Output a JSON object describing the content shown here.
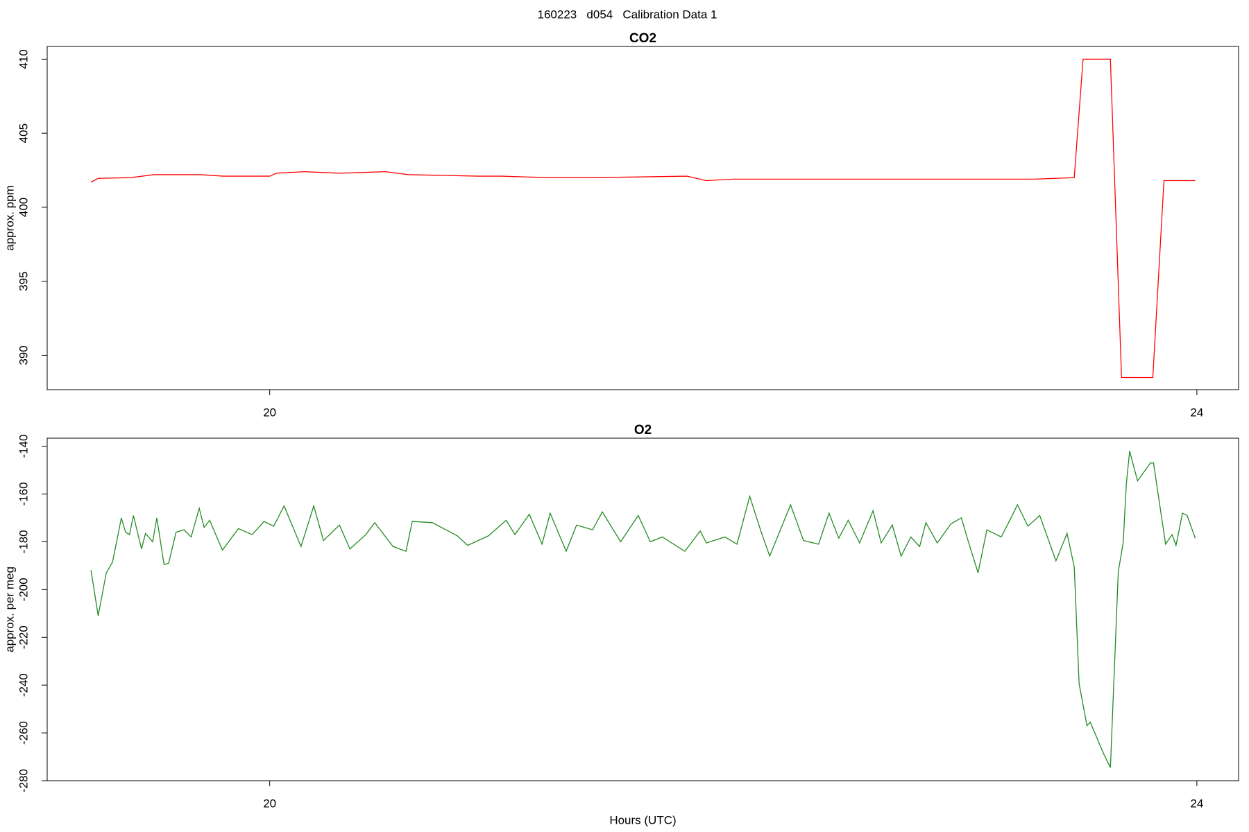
{
  "title": "160223   d054   Calibration Data 1",
  "chart_data": [
    {
      "type": "line",
      "title": "CO2",
      "ylabel": "approx. ppm",
      "color": "#ff0000",
      "xlim": [
        19.04,
        24.18
      ],
      "xticks": [
        20,
        24
      ],
      "ylim": [
        387.68,
        410.86
      ],
      "yticks": [
        390,
        395,
        400,
        405,
        410
      ],
      "x": [
        19.229,
        19.26,
        19.4,
        19.5,
        19.7,
        19.8,
        20.0,
        20.03,
        20.15,
        20.3,
        20.5,
        20.6,
        20.9,
        21.0,
        21.2,
        21.4,
        21.8,
        21.884,
        22.0,
        22.5,
        23.0,
        23.3,
        23.471,
        23.509,
        23.627,
        23.675,
        23.81,
        23.858,
        23.993
      ],
      "y": [
        401.7,
        401.95,
        402.0,
        402.2,
        402.2,
        402.1,
        402.1,
        402.3,
        402.4,
        402.3,
        402.4,
        402.2,
        402.1,
        402.1,
        402.0,
        402.0,
        402.1,
        401.8,
        401.9,
        401.9,
        401.9,
        401.9,
        402.0,
        410,
        410,
        388.5,
        388.5,
        401.8,
        401.8
      ]
    },
    {
      "type": "line",
      "title": "O2",
      "ylabel": "approx. per meg",
      "xlabel": "Hours (UTC)",
      "color": "#228b22",
      "xlim": [
        19.04,
        24.18
      ],
      "xticks": [
        20,
        24
      ],
      "ylim": [
        -280,
        -136.65
      ],
      "yticks": [
        -280,
        -260,
        -240,
        -220,
        -200,
        -180,
        -160,
        -140
      ],
      "x": [
        19.229,
        19.26,
        19.295,
        19.322,
        19.36,
        19.378,
        19.395,
        19.412,
        19.447,
        19.464,
        19.495,
        19.513,
        19.544,
        19.564,
        19.596,
        19.63,
        19.661,
        19.696,
        19.717,
        19.741,
        19.796,
        19.865,
        19.924,
        19.976,
        20.017,
        20.062,
        20.135,
        20.19,
        20.232,
        20.301,
        20.346,
        20.415,
        20.453,
        20.532,
        20.588,
        20.615,
        20.702,
        20.809,
        20.854,
        20.944,
        21.02,
        21.058,
        21.12,
        21.175,
        21.21,
        21.279,
        21.324,
        21.393,
        21.435,
        21.514,
        21.59,
        21.642,
        21.694,
        21.791,
        21.857,
        21.884,
        21.964,
        22.016,
        22.071,
        22.119,
        22.157,
        22.195,
        22.247,
        22.303,
        22.368,
        22.413,
        22.455,
        22.496,
        22.545,
        22.603,
        22.638,
        22.686,
        22.724,
        22.766,
        22.804,
        22.831,
        22.88,
        22.939,
        22.984,
        23.011,
        23.056,
        23.094,
        23.156,
        23.198,
        23.226,
        23.271,
        23.322,
        23.392,
        23.44,
        23.471,
        23.492,
        23.526,
        23.54,
        23.599,
        23.627,
        23.661,
        23.682,
        23.696,
        23.71,
        23.744,
        23.8,
        23.813,
        23.865,
        23.893,
        23.91,
        23.938,
        23.958,
        23.993
      ],
      "y": [
        -191.9,
        -211,
        -193,
        -188.5,
        -170,
        -176,
        -177,
        -169,
        -183,
        -176.5,
        -180,
        -170,
        -189.5,
        -189,
        -176,
        -175,
        -178,
        -166,
        -174,
        -171,
        -183.5,
        -174.5,
        -177,
        -171.5,
        -173.5,
        -165,
        -182,
        -165,
        -179.5,
        -173,
        -183,
        -177,
        -172,
        -182,
        -184,
        -171.5,
        -172,
        -177.5,
        -181.5,
        -177.5,
        -171,
        -177,
        -168.5,
        -181,
        -168,
        -184,
        -173,
        -175,
        -167.5,
        -180,
        -169,
        -180,
        -178,
        -184,
        -175.5,
        -180.5,
        -178,
        -181,
        -161,
        -175.5,
        -186,
        -177,
        -164.5,
        -179.5,
        -181,
        -168,
        -178.5,
        -171,
        -180.5,
        -167,
        -180.5,
        -173,
        -186,
        -178,
        -182,
        -172,
        -180.5,
        -172.5,
        -170,
        -179,
        -193,
        -175,
        -178,
        -170,
        -164.5,
        -173.5,
        -169,
        -188,
        -176.5,
        -190.5,
        -239.5,
        -257,
        -255.5,
        -269,
        -274.5,
        -192.5,
        -180.5,
        -155.5,
        -142,
        -154.5,
        -147,
        -147,
        -181,
        -177,
        -181.5,
        -168,
        -169,
        -178.5
      ]
    }
  ]
}
